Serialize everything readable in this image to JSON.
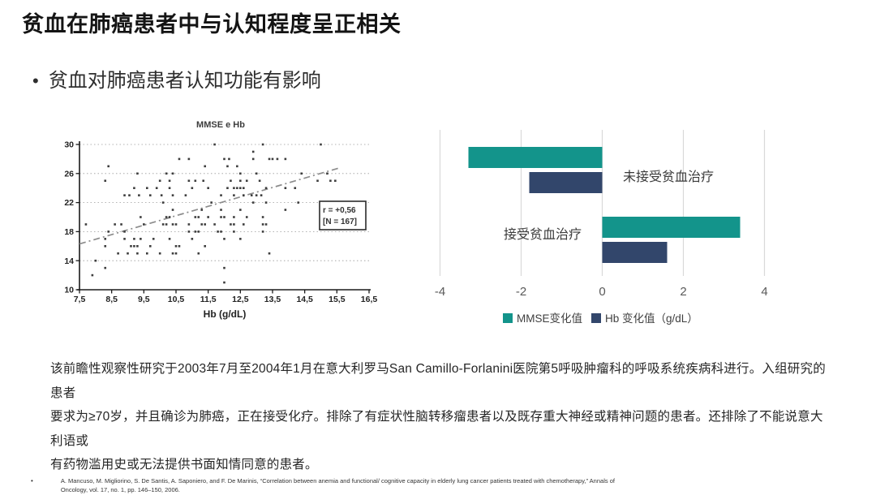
{
  "slide": {
    "title": "贫血在肺癌患者中与认知程度呈正相关",
    "bullet_marker": "•",
    "bullet": "贫血对肺癌患者认知功能有影响",
    "paragraph": "该前瞻性观察性研究于2003年7月至2004年1月在意大利罗马San Camillo-Forlanini医院第5呼吸肿瘤科的呼吸系统疾病科进行。入组研究的患者\n要求为≥70岁，并且确诊为肺癌，正在接受化疗。排除了有症状性脑转移瘤患者以及既存重大神经或精神问题的患者。还排除了不能说意大利语或\n有药物滥用史或无法提供书面知情同意的患者。",
    "footnote_marker": "•",
    "footnote": "A. Mancuso, M. Migliorino, S. De Santis, A. Saponiero, and F. De Marinis,  “Correlation between anemia and functional/ cognitive capacity in elderly lung cancer patients treated with chemotherapy,”  Annals of\nOncology, vol. 17, no. 1, pp. 146–150, 2006."
  },
  "colors": {
    "teal": "#13948B",
    "navy": "#32466B",
    "grid_light": "#D9D9D9",
    "scatter_ink": "#3d3d3d"
  },
  "chart_data": [
    {
      "type": "scatter",
      "title": "MMSE e Hb",
      "xlabel": "Hb (g/dL)",
      "ylabel": "",
      "xlim": [
        7.5,
        16.5
      ],
      "ylim": [
        10,
        30
      ],
      "xticks": [
        7.5,
        8.5,
        9.5,
        10.5,
        11.5,
        12.5,
        13.5,
        14.5,
        15.5,
        16.5
      ],
      "xtick_labels": [
        "7,5",
        "8,5",
        "9,5",
        "10,5",
        "11,5",
        "12,5",
        "13,5",
        "14,5",
        "15,5",
        "16,5"
      ],
      "yticks": [
        10,
        14,
        18,
        22,
        26,
        30
      ],
      "grid": "dotted-horizontal",
      "annotation": {
        "lines": [
          "r = +0,56",
          "[N = 167]"
        ]
      },
      "trendline": {
        "x1": 7.5,
        "y1": 16.3,
        "x2": 15.6,
        "y2": 26.8,
        "style": "dash-dot"
      },
      "points": [
        [
          11.7,
          30
        ],
        [
          13.2,
          30
        ],
        [
          15.0,
          30
        ],
        [
          12.9,
          29
        ],
        [
          10.6,
          28
        ],
        [
          10.9,
          28
        ],
        [
          12.0,
          28
        ],
        [
          12.15,
          28
        ],
        [
          12.9,
          28
        ],
        [
          13.4,
          28
        ],
        [
          13.5,
          28
        ],
        [
          13.65,
          28
        ],
        [
          13.9,
          28
        ],
        [
          8.4,
          27
        ],
        [
          11.4,
          27
        ],
        [
          12.1,
          27
        ],
        [
          12.4,
          27
        ],
        [
          9.3,
          26
        ],
        [
          10.2,
          26
        ],
        [
          10.4,
          26
        ],
        [
          12.5,
          26
        ],
        [
          13.0,
          26
        ],
        [
          14.4,
          26
        ],
        [
          15.2,
          26
        ],
        [
          8.3,
          25
        ],
        [
          10.0,
          25
        ],
        [
          10.3,
          25
        ],
        [
          10.9,
          25
        ],
        [
          11.1,
          25
        ],
        [
          11.35,
          25
        ],
        [
          12.2,
          25
        ],
        [
          12.5,
          25
        ],
        [
          12.7,
          25
        ],
        [
          13.1,
          25
        ],
        [
          14.9,
          25
        ],
        [
          15.3,
          25
        ],
        [
          15.45,
          25
        ],
        [
          9.2,
          24
        ],
        [
          9.6,
          24
        ],
        [
          9.9,
          24
        ],
        [
          10.3,
          24
        ],
        [
          11.0,
          24
        ],
        [
          11.5,
          24
        ],
        [
          12.1,
          24
        ],
        [
          12.3,
          24
        ],
        [
          12.4,
          24
        ],
        [
          12.5,
          24
        ],
        [
          12.6,
          24
        ],
        [
          13.3,
          24
        ],
        [
          13.9,
          24
        ],
        [
          14.2,
          24
        ],
        [
          8.9,
          23
        ],
        [
          9.05,
          23
        ],
        [
          9.35,
          23
        ],
        [
          9.7,
          23
        ],
        [
          10.05,
          23
        ],
        [
          10.4,
          23
        ],
        [
          10.8,
          23
        ],
        [
          11.9,
          23
        ],
        [
          12.3,
          23
        ],
        [
          12.6,
          23
        ],
        [
          12.85,
          23
        ],
        [
          13.0,
          23
        ],
        [
          13.15,
          23
        ],
        [
          10.1,
          22
        ],
        [
          11.6,
          22
        ],
        [
          12.9,
          22
        ],
        [
          13.3,
          22
        ],
        [
          14.3,
          22
        ],
        [
          10.4,
          21
        ],
        [
          11.3,
          21
        ],
        [
          11.9,
          21
        ],
        [
          12.5,
          21
        ],
        [
          13.9,
          21
        ],
        [
          9.4,
          20
        ],
        [
          10.2,
          20
        ],
        [
          10.3,
          20
        ],
        [
          11.1,
          20
        ],
        [
          11.2,
          20
        ],
        [
          11.5,
          20
        ],
        [
          11.9,
          20
        ],
        [
          12.0,
          20
        ],
        [
          12.3,
          20
        ],
        [
          12.7,
          20
        ],
        [
          13.2,
          20
        ],
        [
          7.7,
          19
        ],
        [
          8.6,
          19
        ],
        [
          8.8,
          19
        ],
        [
          9.5,
          19
        ],
        [
          10.1,
          19
        ],
        [
          10.2,
          19
        ],
        [
          10.4,
          19
        ],
        [
          10.5,
          19
        ],
        [
          10.9,
          19
        ],
        [
          11.3,
          19
        ],
        [
          11.4,
          19
        ],
        [
          11.7,
          19
        ],
        [
          12.2,
          19
        ],
        [
          12.3,
          19
        ],
        [
          12.6,
          19
        ],
        [
          13.2,
          19
        ],
        [
          13.3,
          19
        ],
        [
          8.4,
          18
        ],
        [
          8.9,
          18
        ],
        [
          10.9,
          18
        ],
        [
          11.1,
          18
        ],
        [
          11.2,
          18
        ],
        [
          11.8,
          18
        ],
        [
          11.9,
          18
        ],
        [
          12.3,
          18
        ],
        [
          13.2,
          18
        ],
        [
          8.3,
          17
        ],
        [
          8.9,
          17
        ],
        [
          9.2,
          17
        ],
        [
          9.4,
          17
        ],
        [
          9.8,
          17
        ],
        [
          10.3,
          17
        ],
        [
          11.0,
          17
        ],
        [
          12.0,
          17
        ],
        [
          12.5,
          17
        ],
        [
          8.3,
          16
        ],
        [
          9.1,
          16
        ],
        [
          9.2,
          16
        ],
        [
          9.3,
          16
        ],
        [
          9.7,
          16
        ],
        [
          10.5,
          16
        ],
        [
          10.6,
          16
        ],
        [
          11.4,
          16
        ],
        [
          8.7,
          15
        ],
        [
          9.0,
          15
        ],
        [
          9.3,
          15
        ],
        [
          9.6,
          15
        ],
        [
          10.0,
          15
        ],
        [
          10.4,
          15
        ],
        [
          10.5,
          15
        ],
        [
          11.2,
          15
        ],
        [
          13.4,
          15
        ],
        [
          8.0,
          14
        ],
        [
          8.3,
          13
        ],
        [
          12.0,
          13
        ],
        [
          7.9,
          12
        ],
        [
          12.0,
          11
        ]
      ]
    },
    {
      "type": "bar",
      "orientation": "horizontal",
      "categories": [
        "未接受贫血治疗",
        "接受贫血治疗"
      ],
      "series": [
        {
          "name": "MMSE变化值",
          "color": "#13948B",
          "values": [
            -3.3,
            3.4
          ]
        },
        {
          "name": "Hb 变化值（g/dL）",
          "color": "#32466B",
          "values": [
            -1.8,
            1.6
          ]
        }
      ],
      "xticks": [
        -4,
        -2,
        0,
        2,
        4
      ],
      "xlim": [
        -4.4,
        5.4
      ],
      "grid": "vertical",
      "legend_position": "bottom"
    }
  ]
}
